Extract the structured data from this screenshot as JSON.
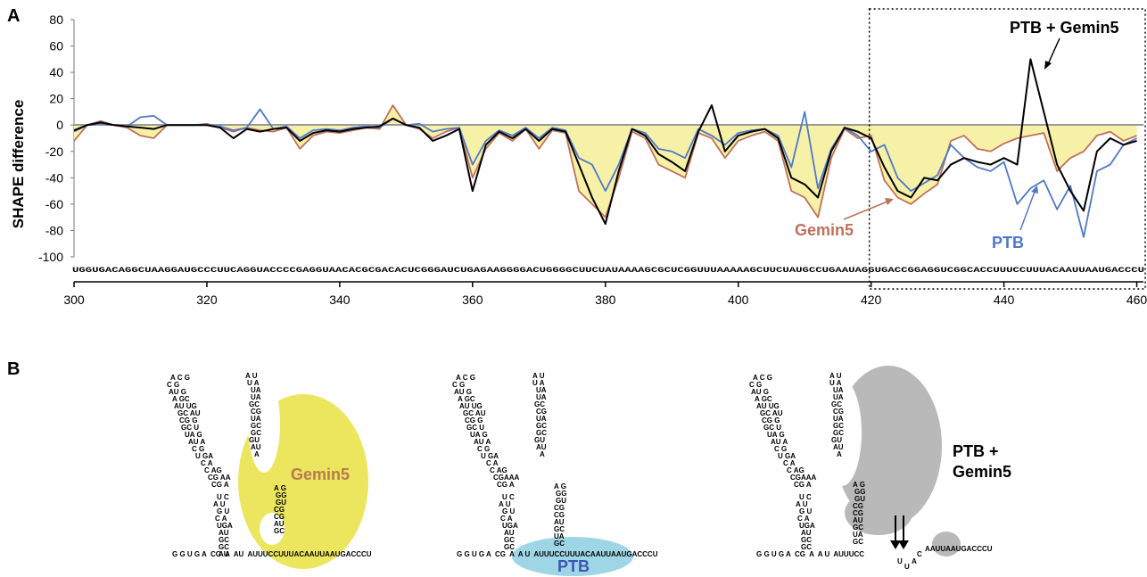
{
  "panels": {
    "a_label": "A",
    "b_label": "B"
  },
  "chart_data": {
    "type": "line",
    "ylabel": "SHAPE  difference",
    "ylim": [
      -100,
      80
    ],
    "yticks": [
      "80",
      "60",
      "40",
      "20",
      "0",
      "-20",
      "-40",
      "-60",
      "-80",
      "-100"
    ],
    "xlim": [
      300,
      461
    ],
    "xticks": [
      "300",
      "320",
      "340",
      "360",
      "380",
      "400",
      "420",
      "440",
      "460"
    ],
    "sequence": "UGGUGACAGGCUAAGGAUGCCCUUCAGGUACCCCGAGGUAACACGCGACACUCGGGAUCUGAGAAGGGGACUGGGGCUUCUAUAAAAGCGCUCGGUUUAAAAAGCUUCUAUGCCUGAAUAGGUGACCGGAGGUCGGCACCUUUCCUUUACAAUUAAUGACCCU",
    "x": [
      300,
      302,
      304,
      306,
      308,
      310,
      312,
      314,
      316,
      318,
      320,
      322,
      324,
      326,
      328,
      330,
      332,
      334,
      336,
      338,
      340,
      342,
      344,
      346,
      348,
      350,
      352,
      354,
      356,
      358,
      360,
      362,
      364,
      366,
      368,
      370,
      372,
      374,
      376,
      378,
      380,
      382,
      384,
      386,
      388,
      390,
      392,
      394,
      396,
      398,
      400,
      402,
      404,
      406,
      408,
      410,
      412,
      414,
      416,
      418,
      420,
      422,
      424,
      426,
      428,
      430,
      432,
      434,
      436,
      438,
      440,
      442,
      444,
      446,
      448,
      450,
      452,
      454,
      456,
      458,
      460
    ],
    "series": [
      {
        "name": "Gemin5",
        "color": "#c0705a",
        "values": [
          -12,
          0,
          3,
          0,
          -2,
          -8,
          -10,
          0,
          0,
          0,
          1,
          -2,
          -5,
          -2,
          -4,
          -5,
          -2,
          -18,
          -8,
          -5,
          -6,
          -4,
          -2,
          -3,
          15,
          0,
          -3,
          -10,
          -5,
          -2,
          -40,
          -18,
          -6,
          -12,
          -3,
          -18,
          -4,
          -6,
          -50,
          -60,
          -70,
          -40,
          -5,
          -10,
          -30,
          -35,
          -40,
          -6,
          -10,
          -25,
          -12,
          -8,
          -5,
          -12,
          -50,
          -55,
          -70,
          -25,
          -3,
          -10,
          -8,
          -42,
          -55,
          -60,
          -52,
          -45,
          -12,
          -8,
          -18,
          -20,
          -14,
          -10,
          -8,
          -6,
          -35,
          -25,
          -20,
          -8,
          -5,
          -12,
          -8
        ]
      },
      {
        "name": "PTB",
        "color": "#4f78c8",
        "values": [
          -5,
          0,
          1,
          0,
          -1,
          6,
          7,
          0,
          0,
          0,
          0,
          -1,
          -4,
          -2,
          12,
          -3,
          -1,
          -10,
          -4,
          -3,
          -4,
          -2,
          -1,
          -2,
          5,
          0,
          1,
          -5,
          -3,
          -2,
          -30,
          -12,
          -4,
          -8,
          -2,
          -10,
          -2,
          -4,
          -25,
          -30,
          -50,
          -30,
          -3,
          -6,
          -18,
          -20,
          -25,
          -3,
          -8,
          -15,
          -6,
          -4,
          -3,
          -8,
          -32,
          10,
          -48,
          -18,
          -2,
          -8,
          -20,
          -15,
          -40,
          -50,
          -44,
          -38,
          -15,
          -25,
          -32,
          -35,
          -28,
          -60,
          -48,
          -42,
          -64,
          -46,
          -85,
          -35,
          -30,
          -15,
          -10
        ]
      },
      {
        "name": "PTB + Gemin5",
        "color": "#000000",
        "values": [
          -4,
          0,
          2,
          0,
          -1,
          -2,
          -3,
          0,
          0,
          0,
          0,
          -2,
          -10,
          -3,
          -5,
          -3,
          -2,
          -12,
          -6,
          -4,
          -5,
          -3,
          -2,
          -1,
          5,
          0,
          -2,
          -12,
          -8,
          -3,
          -50,
          -15,
          -5,
          -10,
          -3,
          -12,
          -3,
          -5,
          -30,
          -55,
          -75,
          -35,
          -3,
          -8,
          -22,
          -28,
          -35,
          -5,
          15,
          -20,
          -8,
          -5,
          -3,
          -10,
          -40,
          -45,
          -55,
          -20,
          -2,
          -5,
          -10,
          -32,
          -50,
          -55,
          -40,
          -42,
          -30,
          -25,
          -28,
          -30,
          -25,
          -30,
          50,
          10,
          -30,
          -50,
          -65,
          -20,
          -10,
          -15,
          -12
        ]
      }
    ],
    "annotations": [
      {
        "text": "PTB + Gemin5",
        "color": "#000000"
      },
      {
        "text": "Gemin5",
        "color": "#c0705a"
      },
      {
        "text": "PTB",
        "color": "#4f78c8"
      }
    ],
    "highlight_box": {
      "x_start": 420,
      "x_end": 461
    }
  },
  "panel_b": {
    "models": [
      {
        "protein": "Gemin5",
        "protein_color": "#b77a52",
        "blob_color": "#ece55e",
        "tail": "G G U G A  CG  A  AU  AUUUCCUUUACAAUUAAUGACCCU"
      },
      {
        "protein": "PTB",
        "protein_color": "#3b56b4",
        "blob_color": "#9fd6e6",
        "tail": "G G U G A  CG  A  A U  AUUUCCUUUACAAUUAAUGACCCU"
      },
      {
        "protein": "PTB +",
        "protein2": "Gemin5",
        "protein_color": "#000000",
        "blob_color": "#b9b9b9",
        "tail": "G G U G A  CG  A  A U  AUUUCC",
        "tail2": "AAUUAAUGACCCU",
        "loop_letters": [
          "U",
          "U",
          "A",
          "C"
        ]
      }
    ]
  }
}
